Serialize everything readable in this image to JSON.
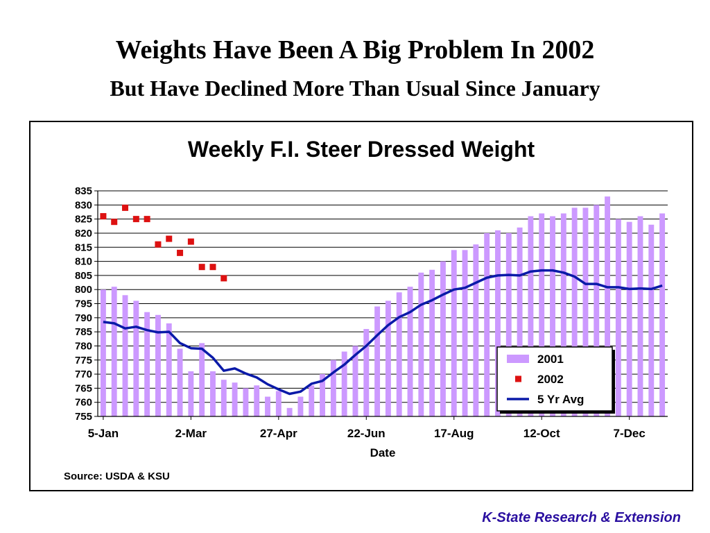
{
  "slide": {
    "title": "Weights Have Been A Big Problem In 2002",
    "subtitle": "But Have Declined More Than Usual Since January",
    "footer": "K-State Research & Extension"
  },
  "chart_data": {
    "type": "bar",
    "title": "Weekly F.I. Steer Dressed Weight",
    "xlabel": "Date",
    "ylabel": "",
    "source": "Source:  USDA & KSU",
    "ylim": [
      755,
      835
    ],
    "yticks": [
      755,
      760,
      765,
      770,
      775,
      780,
      785,
      790,
      795,
      800,
      805,
      810,
      815,
      820,
      825,
      830,
      835
    ],
    "grid": true,
    "legend_position": "bottom-right",
    "colors": {
      "bar_2001": "#cc99ff",
      "marker_2002": "#dd1111",
      "line_5yr": "#0a1aa8"
    },
    "xtick_labels": [
      {
        "week": 1,
        "label": "5-Jan"
      },
      {
        "week": 9,
        "label": "2-Mar"
      },
      {
        "week": 17,
        "label": "27-Apr"
      },
      {
        "week": 25,
        "label": "22-Jun"
      },
      {
        "week": 33,
        "label": "17-Aug"
      },
      {
        "week": 41,
        "label": "12-Oct"
      },
      {
        "week": 49,
        "label": "7-Dec"
      }
    ],
    "series": [
      {
        "name": "2001",
        "type": "bar",
        "values": [
          800,
          801,
          798,
          796,
          792,
          791,
          788,
          779,
          771,
          781,
          771,
          768,
          767,
          765,
          766,
          762,
          764,
          758,
          762,
          766,
          770,
          775,
          778,
          780,
          786,
          794,
          796,
          799,
          801,
          806,
          807,
          810,
          814,
          814,
          816,
          820,
          821,
          820,
          822,
          826,
          827,
          826,
          827,
          829,
          829,
          830,
          833,
          825,
          824,
          826,
          823,
          827
        ]
      },
      {
        "name": "2002",
        "type": "scatter",
        "values": [
          826,
          824,
          829,
          825,
          825,
          816,
          818,
          813,
          817,
          808,
          808,
          804
        ]
      },
      {
        "name": "5 Yr Avg",
        "type": "line",
        "values": [
          788.5,
          788,
          786.2,
          786.8,
          785.6,
          784.8,
          785,
          781,
          779.2,
          779,
          775.8,
          771.2,
          772,
          770.2,
          768.8,
          766.4,
          764.6,
          763,
          763.8,
          766.6,
          767.6,
          770.6,
          773.4,
          776.8,
          780,
          783.8,
          787.4,
          790.2,
          792,
          794.6,
          796.2,
          798.2,
          800,
          800.6,
          802.4,
          804.2,
          805,
          805.2,
          805,
          806.4,
          806.8,
          806.8,
          806,
          804.6,
          802,
          802,
          800.8,
          800.8,
          800.2,
          800.4,
          800.2,
          801.4
        ]
      }
    ]
  }
}
